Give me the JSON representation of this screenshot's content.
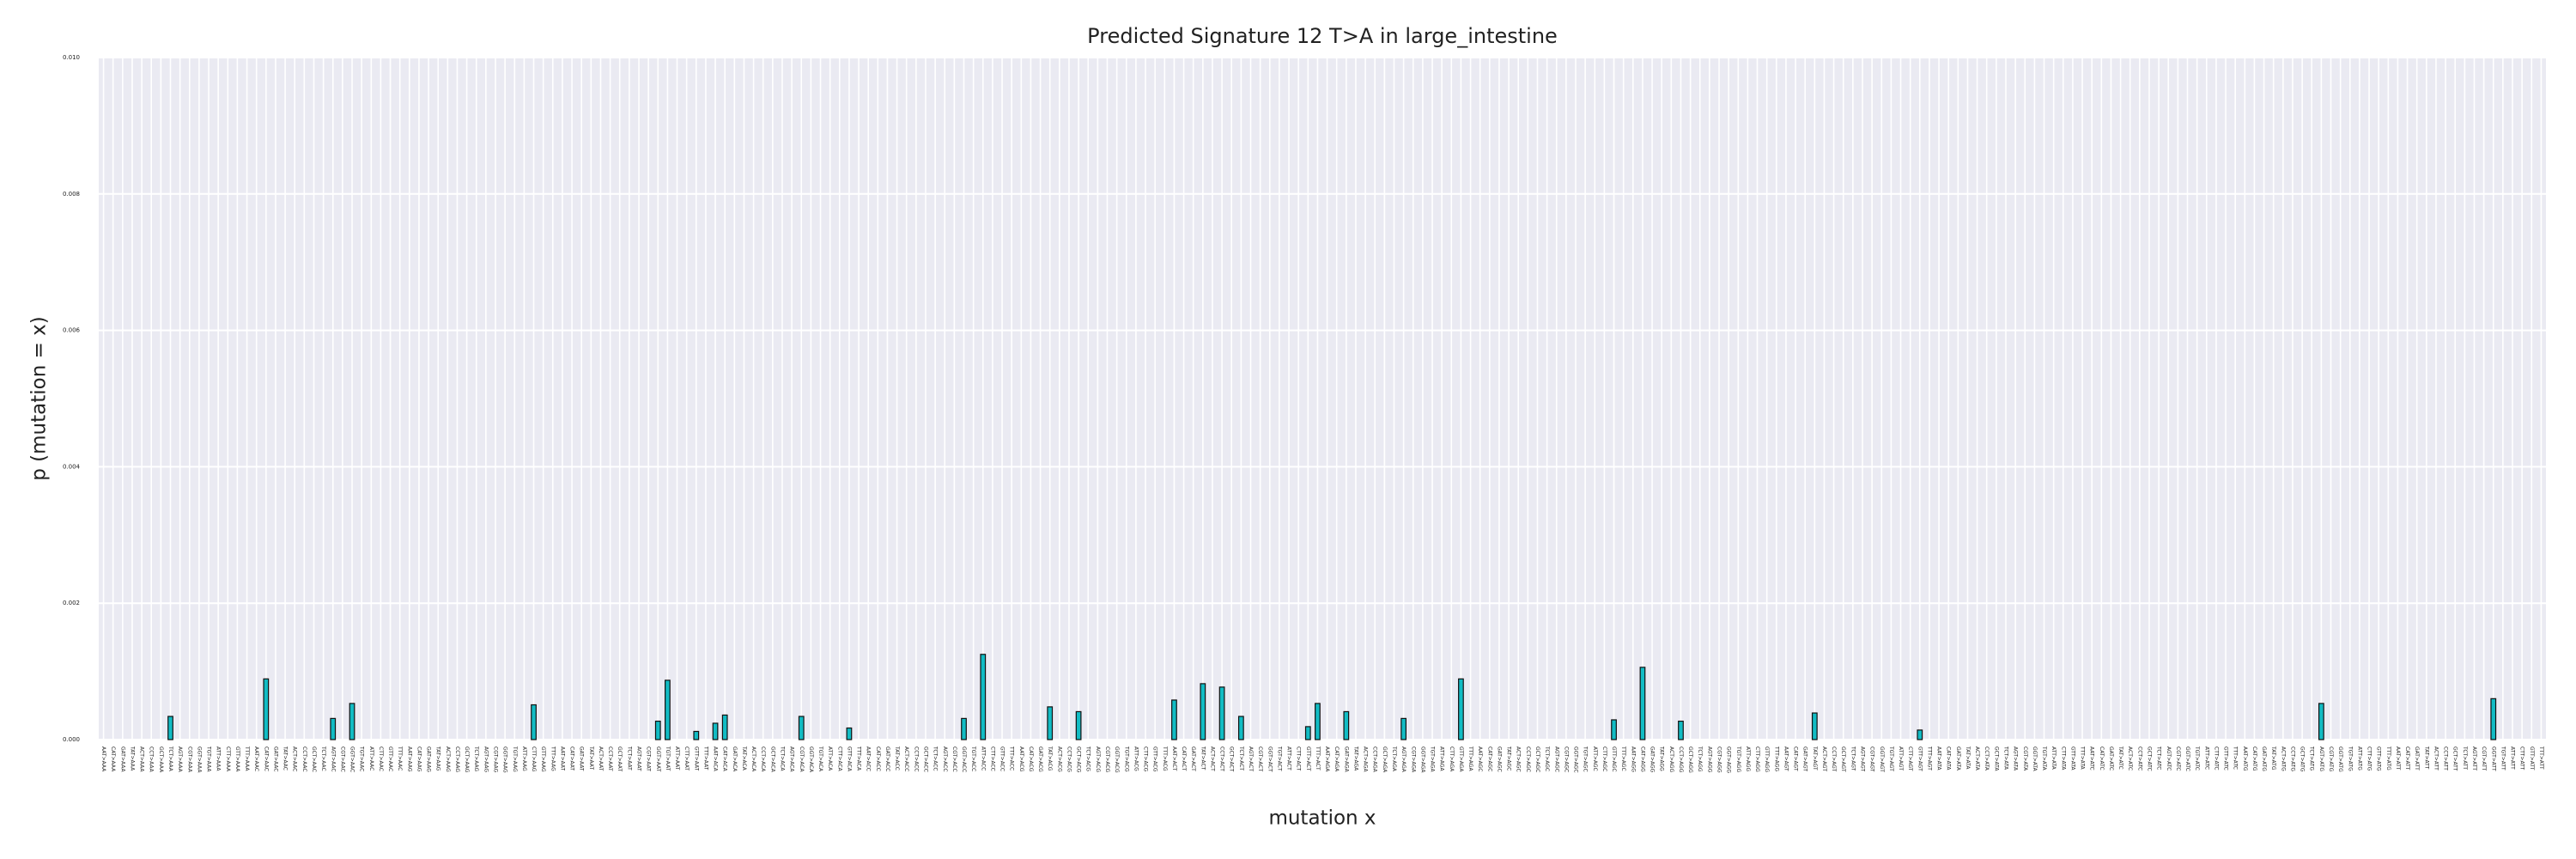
{
  "chart_data": {
    "type": "bar",
    "title": "Predicted Signature 12 T>A in large_intestine",
    "xlabel": "mutation x",
    "ylabel": "p (mutation = x)",
    "color": "#12bcc4",
    "edgecolor": "#111111",
    "grid": true,
    "ylim": [
      0,
      0.01
    ],
    "yticks": [
      {
        "value": 0,
        "label": "0.000"
      },
      {
        "value": 0.002,
        "label": "0.002"
      },
      {
        "value": 0.004,
        "label": "0.004"
      },
      {
        "value": 0.006,
        "label": "0.006"
      },
      {
        "value": 0.008,
        "label": "0.008"
      },
      {
        "value": 0.01,
        "label": "0.010"
      }
    ],
    "categories": [
      "AAT>AAA",
      "CAT>AAA",
      "GAT>AAA",
      "TAT>AAA",
      "ACT>AAA",
      "CCT>AAA",
      "GCT>AAA",
      "TCT>AAA",
      "AGT>AAA",
      "CGT>AAA",
      "GGT>AAA",
      "TGT>AAA",
      "ATT>AAA",
      "CTT>AAA",
      "GTT>AAA",
      "TTT>AAA",
      "AAT>AAC",
      "CAT>AAC",
      "GAT>AAC",
      "TAT>AAC",
      "ACT>AAC",
      "CCT>AAC",
      "GCT>AAC",
      "TCT>AAC",
      "AGT>AAC",
      "CGT>AAC",
      "GGT>AAC",
      "TGT>AAC",
      "ATT>AAC",
      "CTT>AAC",
      "GTT>AAC",
      "TTT>AAC",
      "AAT>AAG",
      "CAT>AAG",
      "GAT>AAG",
      "TAT>AAG",
      "ACT>AAG",
      "CCT>AAG",
      "GCT>AAG",
      "TCT>AAG",
      "AGT>AAG",
      "CGT>AAG",
      "GGT>AAG",
      "TGT>AAG",
      "ATT>AAG",
      "CTT>AAG",
      "GTT>AAG",
      "TTT>AAG",
      "AAT>AAT",
      "CAT>AAT",
      "GAT>AAT",
      "TAT>AAT",
      "ACT>AAT",
      "CCT>AAT",
      "GCT>AAT",
      "TCT>AAT",
      "AGT>AAT",
      "CGT>AAT",
      "GGT>AAT",
      "TGT>AAT",
      "ATT>AAT",
      "CTT>AAT",
      "GTT>AAT",
      "TTT>AAT",
      "AAT>ACA",
      "CAT>ACA",
      "GAT>ACA",
      "TAT>ACA",
      "ACT>ACA",
      "CCT>ACA",
      "GCT>ACA",
      "TCT>ACA",
      "AGT>ACA",
      "CGT>ACA",
      "GGT>ACA",
      "TGT>ACA",
      "ATT>ACA",
      "CTT>ACA",
      "GTT>ACA",
      "TTT>ACA",
      "AAT>ACC",
      "CAT>ACC",
      "GAT>ACC",
      "TAT>ACC",
      "ACT>ACC",
      "CCT>ACC",
      "GCT>ACC",
      "TCT>ACC",
      "AGT>ACC",
      "CGT>ACC",
      "GGT>ACC",
      "TGT>ACC",
      "ATT>ACC",
      "CTT>ACC",
      "GTT>ACC",
      "TTT>ACC",
      "AAT>ACG",
      "CAT>ACG",
      "GAT>ACG",
      "TAT>ACG",
      "ACT>ACG",
      "CCT>ACG",
      "GCT>ACG",
      "TCT>ACG",
      "AGT>ACG",
      "CGT>ACG",
      "GGT>ACG",
      "TGT>ACG",
      "ATT>ACG",
      "CTT>ACG",
      "GTT>ACG",
      "TTT>ACG",
      "AAT>ACT",
      "CAT>ACT",
      "GAT>ACT",
      "TAT>ACT",
      "ACT>ACT",
      "CCT>ACT",
      "GCT>ACT",
      "TCT>ACT",
      "AGT>ACT",
      "CGT>ACT",
      "GGT>ACT",
      "TGT>ACT",
      "ATT>ACT",
      "CTT>ACT",
      "GTT>ACT",
      "TTT>ACT",
      "AAT>AGA",
      "CAT>AGA",
      "GAT>AGA",
      "TAT>AGA",
      "ACT>AGA",
      "CCT>AGA",
      "GCT>AGA",
      "TCT>AGA",
      "AGT>AGA",
      "CGT>AGA",
      "GGT>AGA",
      "TGT>AGA",
      "ATT>AGA",
      "CTT>AGA",
      "GTT>AGA",
      "TTT>AGA",
      "AAT>AGC",
      "CAT>AGC",
      "GAT>AGC",
      "TAT>AGC",
      "ACT>AGC",
      "CCT>AGC",
      "GCT>AGC",
      "TCT>AGC",
      "AGT>AGC",
      "CGT>AGC",
      "GGT>AGC",
      "TGT>AGC",
      "ATT>AGC",
      "CTT>AGC",
      "GTT>AGC",
      "TTT>AGC",
      "AAT>AGG",
      "CAT>AGG",
      "GAT>AGG",
      "TAT>AGG",
      "ACT>AGG",
      "CCT>AGG",
      "GCT>AGG",
      "TCT>AGG",
      "AGT>AGG",
      "CGT>AGG",
      "GGT>AGG",
      "TGT>AGG",
      "ATT>AGG",
      "CTT>AGG",
      "GTT>AGG",
      "TTT>AGG",
      "AAT>AGT",
      "CAT>AGT",
      "GAT>AGT",
      "TAT>AGT",
      "ACT>AGT",
      "CCT>AGT",
      "GCT>AGT",
      "TCT>AGT",
      "AGT>AGT",
      "CGT>AGT",
      "GGT>AGT",
      "TGT>AGT",
      "ATT>AGT",
      "CTT>AGT",
      "GTT>AGT",
      "TTT>AGT",
      "AAT>ATA",
      "CAT>ATA",
      "GAT>ATA",
      "TAT>ATA",
      "ACT>ATA",
      "CCT>ATA",
      "GCT>ATA",
      "TCT>ATA",
      "AGT>ATA",
      "CGT>ATA",
      "GGT>ATA",
      "TGT>ATA",
      "ATT>ATA",
      "CTT>ATA",
      "GTT>ATA",
      "TTT>ATA",
      "AAT>ATC",
      "CAT>ATC",
      "GAT>ATC",
      "TAT>ATC",
      "ACT>ATC",
      "CCT>ATC",
      "GCT>ATC",
      "TCT>ATC",
      "AGT>ATC",
      "CGT>ATC",
      "GGT>ATC",
      "TGT>ATC",
      "ATT>ATC",
      "CTT>ATC",
      "GTT>ATC",
      "TTT>ATC",
      "AAT>ATG",
      "CAT>ATG",
      "GAT>ATG",
      "TAT>ATG",
      "ACT>ATG",
      "CCT>ATG",
      "GCT>ATG",
      "TCT>ATG",
      "AGT>ATG",
      "CGT>ATG",
      "GGT>ATG",
      "TGT>ATG",
      "ATT>ATG",
      "CTT>ATG",
      "GTT>ATG",
      "TTT>ATG",
      "AAT>ATT",
      "CAT>ATT",
      "GAT>ATT",
      "TAT>ATT",
      "ACT>ATT",
      "CCT>ATT",
      "GCT>ATT",
      "TCT>ATT",
      "AGT>ATT",
      "CGT>ATT",
      "GGT>ATT",
      "TGT>ATT",
      "ATT>ATT",
      "CTT>ATT",
      "GTT>ATT",
      "TTT>ATT"
    ],
    "values": [
      0,
      0,
      0,
      0,
      0,
      0,
      0,
      0.00034,
      0,
      0,
      0,
      0,
      0,
      0,
      0,
      0,
      0,
      0.00089,
      0,
      0,
      0,
      0,
      0,
      0,
      0.00031,
      0,
      0.00053,
      0,
      0,
      0,
      0,
      0,
      0,
      0,
      0,
      0,
      0,
      0,
      0,
      0,
      0,
      0,
      0,
      0,
      0,
      0.00051,
      0,
      0,
      0,
      0,
      0,
      0,
      0,
      0,
      0,
      0,
      0,
      0,
      0.00027,
      0.00087,
      0,
      0,
      0.00012,
      0,
      0.00024,
      0.00036,
      0,
      0,
      0,
      0,
      0,
      0,
      0,
      0.00034,
      0,
      0,
      0,
      0,
      0.00017,
      0,
      0,
      0,
      0,
      0,
      0,
      0,
      0,
      0,
      0,
      0,
      0.00031,
      0,
      0.00125,
      0,
      0,
      0,
      0,
      0,
      0,
      0.00048,
      0,
      0,
      0.00041,
      0,
      0,
      0,
      0,
      0,
      0,
      0,
      0,
      0,
      0.00058,
      0,
      0,
      0.00082,
      0,
      0.00077,
      0,
      0.00034,
      0,
      0,
      0,
      0,
      0,
      0,
      0.00019,
      0.00053,
      0,
      0,
      0.00041,
      0,
      0,
      0,
      0,
      0,
      0.00031,
      0,
      0,
      0,
      0,
      0,
      0.00089,
      0,
      0,
      0,
      0,
      0,
      0,
      0,
      0,
      0,
      0,
      0,
      0,
      0,
      0,
      0,
      0.00029,
      0,
      0,
      0.00106,
      0,
      0,
      0,
      0.00027,
      0,
      0,
      0,
      0,
      0,
      0,
      0,
      0,
      0,
      0,
      0,
      0,
      0,
      0.00039,
      0,
      0,
      0,
      0,
      0,
      0,
      0,
      0,
      0,
      0,
      0.00014,
      0,
      0,
      0,
      0,
      0,
      0,
      0,
      0,
      0,
      0,
      0,
      0,
      0,
      0,
      0,
      0,
      0,
      0,
      0,
      0,
      0,
      0,
      0,
      0,
      0,
      0,
      0,
      0,
      0,
      0,
      0,
      0,
      0,
      0,
      0,
      0,
      0,
      0,
      0,
      0,
      0,
      0.00053,
      0,
      0,
      0,
      0,
      0,
      0,
      0,
      0,
      0,
      0,
      0,
      0,
      0,
      0,
      0,
      0,
      0,
      0.0006,
      0,
      0,
      0,
      0,
      0
    ]
  }
}
